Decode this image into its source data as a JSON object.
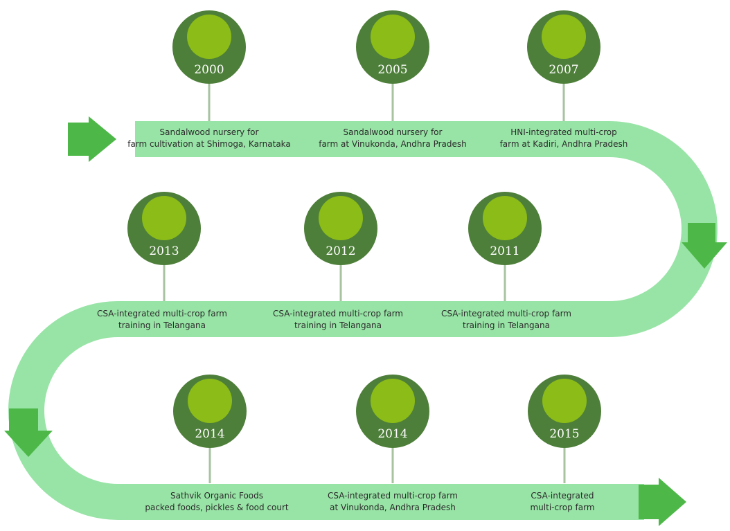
{
  "colors": {
    "road": "#98e4a6",
    "arrow": "#4db848",
    "circle_outer": "#4e7f3a",
    "circle_inner": "#8bbc17",
    "stem": "#a7c3a0",
    "text": "#2b2b2b",
    "year_text": "#ffffff"
  },
  "milestones": [
    {
      "year": "2000",
      "line1": "Sandalwood nursery for",
      "line2": "farm cultivation at Shimoga, Karnataka"
    },
    {
      "year": "2005",
      "line1": "Sandalwood nursery for",
      "line2": "farm at Vinukonda, Andhra Pradesh"
    },
    {
      "year": "2007",
      "line1": "HNI-integrated multi-crop",
      "line2": "farm at Kadiri, Andhra Pradesh"
    },
    {
      "year": "2013",
      "line1": "CSA-integrated multi-crop farm",
      "line2": "training in Telangana"
    },
    {
      "year": "2012",
      "line1": "CSA-integrated multi-crop farm",
      "line2": "training in Telangana"
    },
    {
      "year": "2011",
      "line1": "CSA-integrated multi-crop farm",
      "line2": "training in Telangana"
    },
    {
      "year": "2014",
      "line1": "Sathvik Organic Foods",
      "line2": "packed foods, pickles & food court"
    },
    {
      "year": "2014",
      "line1": "CSA-integrated multi-crop farm",
      "line2": "at Vinukonda, Andhra Pradesh"
    },
    {
      "year": "2015",
      "line1": "CSA-integrated",
      "line2": "multi-crop farm"
    }
  ]
}
